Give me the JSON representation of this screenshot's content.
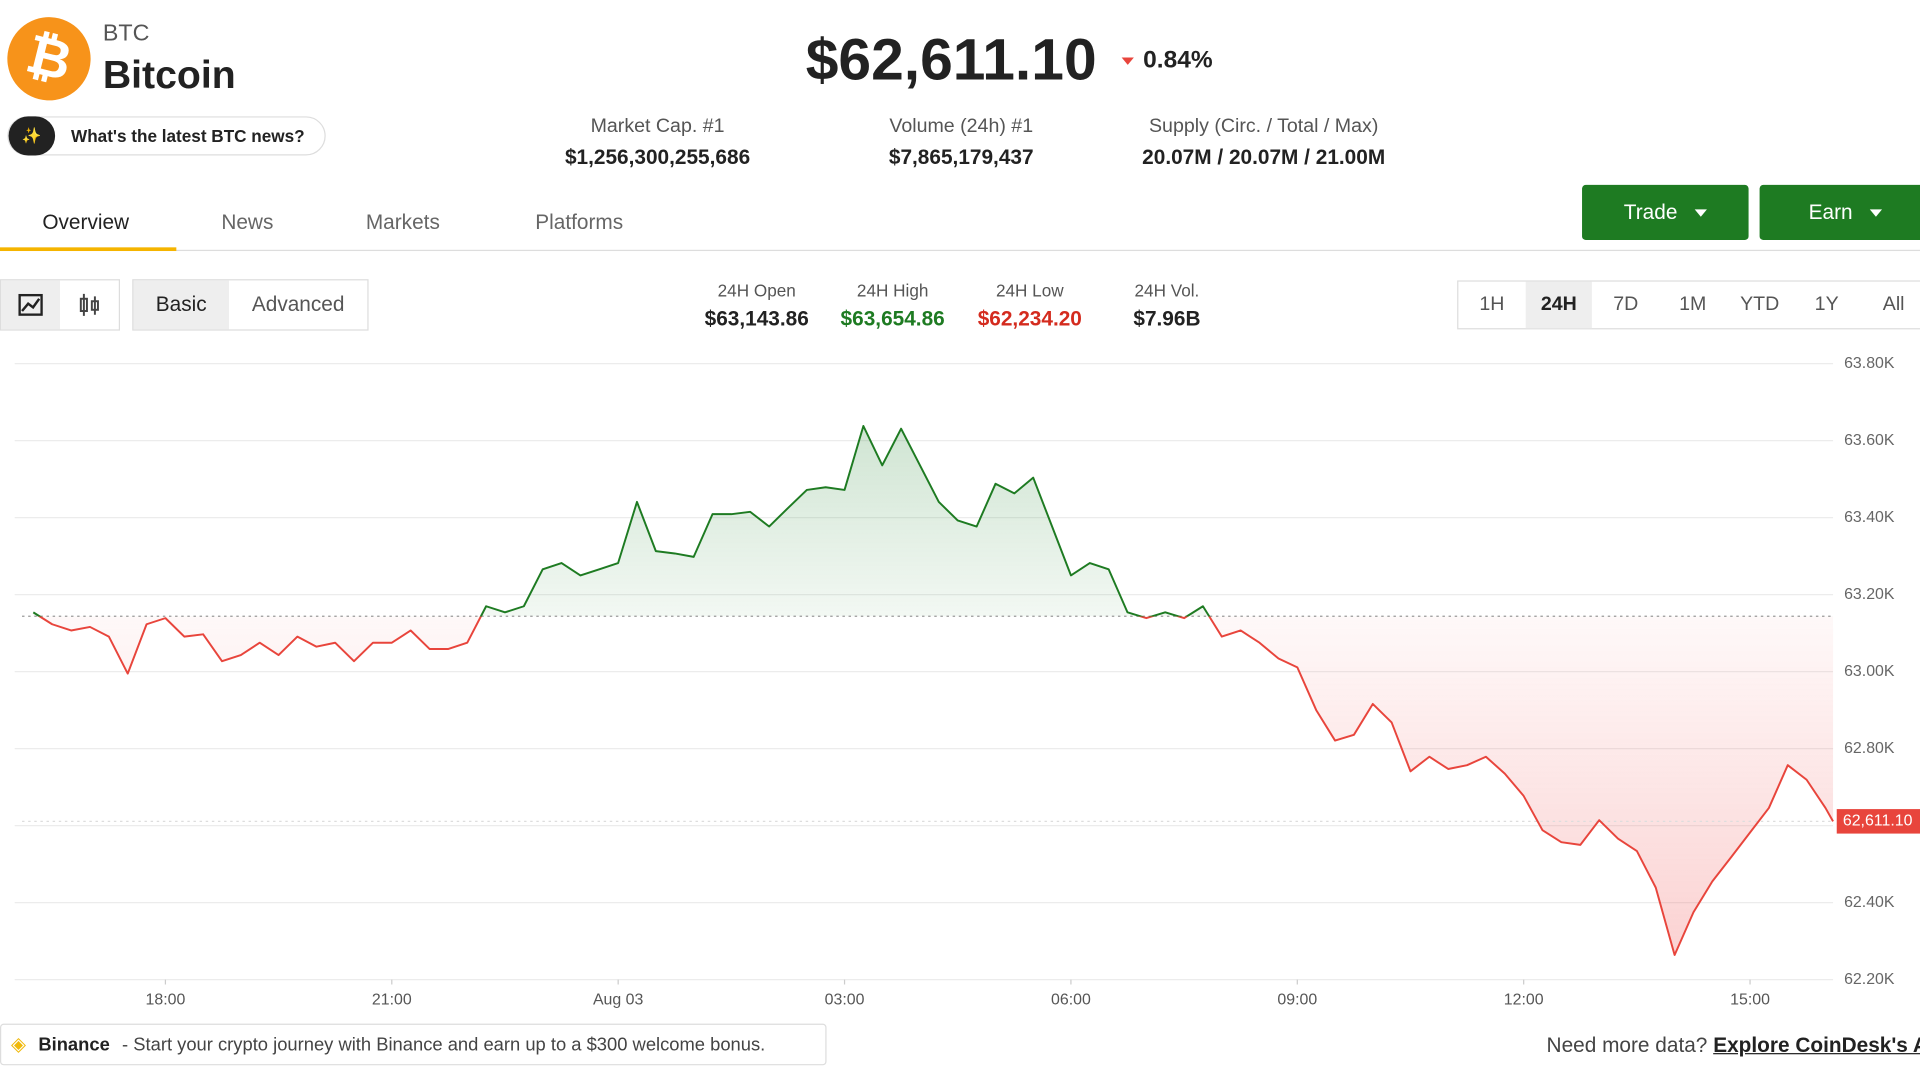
{
  "coin": {
    "symbol": "BTC",
    "name": "Bitcoin",
    "price": "$62,611.10",
    "change": "0.84%"
  },
  "ai_prompt": "What's the latest BTC news?",
  "stats": [
    {
      "label": "Market Cap. #1",
      "value": "$1,256,300,255,686"
    },
    {
      "label": "Volume (24h) #1",
      "value": "$7,865,179,437"
    },
    {
      "label": "Supply (Circ. / Total / Max)",
      "value": "20.07M / 20.07M / 21.00M"
    }
  ],
  "tabs": [
    "Overview",
    "News",
    "Markets",
    "Platforms"
  ],
  "actions": [
    "Trade",
    "Earn"
  ],
  "view_modes": [
    "Basic",
    "Advanced"
  ],
  "day_stats": [
    {
      "label": "24H Open",
      "value": "$63,143.86"
    },
    {
      "label": "24H High",
      "value": "$63,654.86"
    },
    {
      "label": "24H Low",
      "value": "$62,234.20"
    },
    {
      "label": "24H Vol.",
      "value": "$7.96B"
    }
  ],
  "ranges": [
    "1H",
    "24H",
    "7D",
    "1M",
    "YTD",
    "1Y",
    "All"
  ],
  "ad": {
    "brand": "Binance",
    "text": "- Start your crypto journey with Binance and earn up to a $300 welcome bonus."
  },
  "more_data": {
    "text": "Need more data?",
    "link": "Explore CoinDesk's API"
  },
  "chart_data": {
    "type": "line",
    "grid": true,
    "colors": {
      "up": "#1e7b22",
      "down": "#e8453c",
      "up_fill": "#2e8b3a",
      "down_fill": "#f06060"
    },
    "baseline": 63143.86,
    "current": {
      "value": 62611.1,
      "label": "62,611.10"
    },
    "xlim": [
      16.1,
      40.1
    ],
    "xticks": [
      {
        "value": 18,
        "label": "18:00"
      },
      {
        "value": 21,
        "label": "21:00"
      },
      {
        "value": 24,
        "label": "Aug 03"
      },
      {
        "value": 27,
        "label": "03:00"
      },
      {
        "value": 30,
        "label": "06:00"
      },
      {
        "value": 33,
        "label": "09:00"
      },
      {
        "value": 36,
        "label": "12:00"
      },
      {
        "value": 39,
        "label": "15:00"
      }
    ],
    "ylim": [
      62200,
      63800
    ],
    "yticks": [
      {
        "value": 62200,
        "label": "62.20K"
      },
      {
        "value": 62400,
        "label": "62.40K"
      },
      {
        "value": 62600,
        "label": "62.60K"
      },
      {
        "value": 62800,
        "label": "62.80K"
      },
      {
        "value": 63000,
        "label": "63.00K"
      },
      {
        "value": 63200,
        "label": "63.20K"
      },
      {
        "value": 63400,
        "label": "63.40K"
      },
      {
        "value": 63600,
        "label": "63.60K"
      },
      {
        "value": 63800,
        "label": "63.80K"
      }
    ],
    "x": [
      16.25,
      16.5,
      16.75,
      17,
      17.25,
      17.5,
      17.75,
      18,
      18.25,
      18.5,
      18.75,
      19,
      19.25,
      19.5,
      19.75,
      20,
      20.25,
      20.5,
      20.75,
      21,
      21.25,
      21.5,
      21.75,
      22,
      22.25,
      22.5,
      22.75,
      23,
      23.25,
      23.5,
      23.75,
      24,
      24.25,
      24.5,
      24.75,
      25,
      25.25,
      25.5,
      25.75,
      26,
      26.25,
      26.5,
      26.75,
      27,
      27.25,
      27.5,
      27.75,
      28,
      28.25,
      28.5,
      28.75,
      29,
      29.25,
      29.5,
      29.75,
      30,
      30.25,
      30.5,
      30.75,
      31,
      31.25,
      31.5,
      31.75,
      32,
      32.25,
      32.5,
      32.75,
      33,
      33.25,
      33.5,
      33.75,
      34,
      34.25,
      34.5,
      34.75,
      35,
      35.25,
      35.5,
      35.75,
      36,
      36.25,
      36.5,
      36.75,
      37,
      37.25,
      37.5,
      37.75,
      38,
      38.25,
      38.5,
      38.75,
      39,
      39.25,
      39.5,
      39.75,
      40,
      40.1
    ],
    "values": [
      63154,
      63123,
      63107,
      63116,
      63091,
      62995,
      63123,
      63139,
      63091,
      63097,
      63027,
      63043,
      63075,
      63043,
      63091,
      63065,
      63075,
      63027,
      63075,
      63075,
      63107,
      63059,
      63059,
      63075,
      63170,
      63154,
      63170,
      63266,
      63282,
      63250,
      63266,
      63282,
      63441,
      63313,
      63307,
      63298,
      63409,
      63409,
      63415,
      63377,
      63425,
      63472,
      63479,
      63472,
      63638,
      63536,
      63631,
      63536,
      63441,
      63393,
      63377,
      63488,
      63463,
      63504,
      63377,
      63250,
      63282,
      63266,
      63154,
      63139,
      63154,
      63139,
      63170,
      63091,
      63107,
      63075,
      63034,
      63011,
      62900,
      62821,
      62836,
      62916,
      62868,
      62741,
      62779,
      62747,
      62757,
      62779,
      62735,
      62677,
      62588,
      62557,
      62550,
      62614,
      62566,
      62534,
      62439,
      62264,
      62375,
      62455,
      62518,
      62582,
      62646,
      62757,
      62719,
      62646,
      62611.1
    ]
  }
}
